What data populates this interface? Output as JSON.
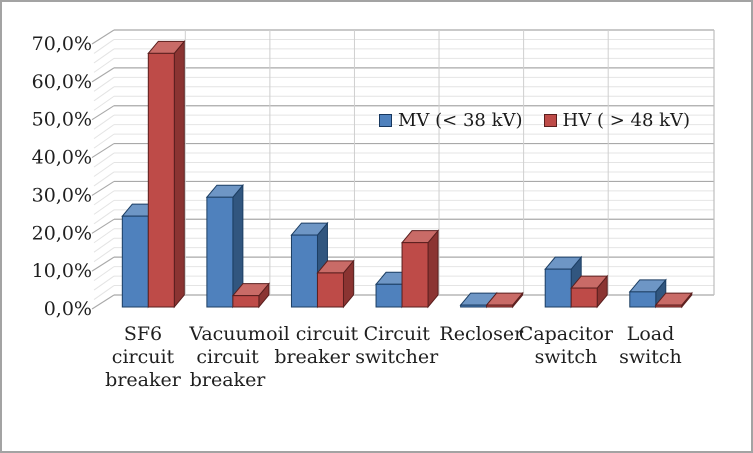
{
  "chart_data": {
    "type": "bar",
    "style": "3d-clustered-column",
    "title": "",
    "xlabel": "",
    "ylabel": "",
    "grid": true,
    "ylim": [
      0,
      70
    ],
    "y_major_step": 10,
    "y_minor_step": 2.5,
    "y_tick_labels": [
      "0,0%",
      "10,0%",
      "20,0%",
      "30,0%",
      "40,0%",
      "50,0%",
      "60,0%",
      "70,0%"
    ],
    "categories": [
      "SF6 circuit breaker",
      "Vacuum circuit breaker",
      "oil circuit breaker",
      "Circuit switcher",
      "Recloser",
      "Capacitor switch",
      "Load switch"
    ],
    "category_lines": [
      [
        "SF6",
        "circuit",
        "breaker"
      ],
      [
        "Vacuum",
        "circuit",
        "breaker"
      ],
      [
        "oil circuit",
        "breaker"
      ],
      [
        "Circuit",
        "switcher"
      ],
      [
        "Recloser"
      ],
      [
        "Capacitor",
        "switch"
      ],
      [
        "Load",
        "switch"
      ]
    ],
    "legend_position": "inside-top-center-right",
    "series": [
      {
        "name": "MV (< 38 kV)",
        "color": "#4F81BD",
        "color_top": "#6E96C5",
        "color_side": "#31567F",
        "color_border": "#1C3E63",
        "values": [
          24,
          29,
          19,
          6,
          0.5,
          10,
          4
        ]
      },
      {
        "name": "HV ( > 48 kV)",
        "color": "#BE4B48",
        "color_top": "#C96B67",
        "color_side": "#8B3432",
        "color_border": "#5A1F1E",
        "values": [
          67,
          3,
          9,
          17,
          0.5,
          5,
          0.5
        ]
      }
    ],
    "colors": {
      "grid_major": "#a9a9a9",
      "grid_minor": "#e4e4e4",
      "wall_separator": "#cfcfcf",
      "text": "#1f1f1f",
      "frame_border": "#a3a3a3"
    }
  }
}
